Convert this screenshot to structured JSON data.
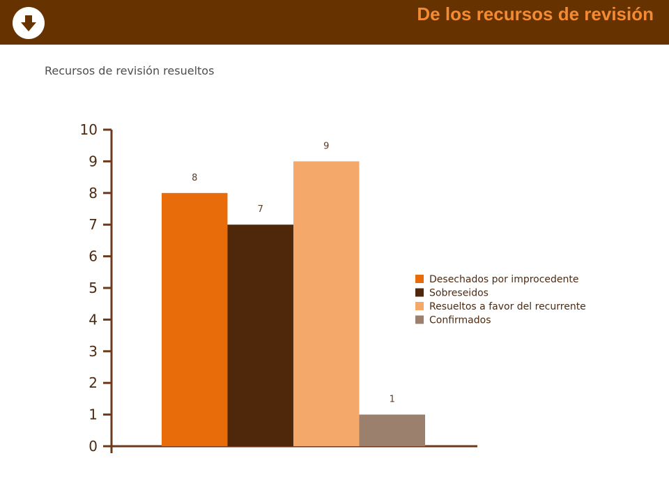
{
  "header": {
    "title": "De los recursos de revisión",
    "download_icon": "arrow-down-circle-icon",
    "bar_color": "#663300",
    "title_color": "#f28b33"
  },
  "chart_data": {
    "type": "bar",
    "title": "Recursos de revisión resueltos",
    "xlabel": "",
    "ylabel": "",
    "ylim": [
      0,
      10
    ],
    "yticks": [
      0,
      1,
      2,
      3,
      4,
      5,
      6,
      7,
      8,
      9,
      10
    ],
    "grid": false,
    "legend_position": "right",
    "series": [
      {
        "name": "Desechados por improcedente",
        "value": 8,
        "label": "8",
        "color": "#e86c0a"
      },
      {
        "name": "Sobreseidos",
        "value": 7,
        "label": "7",
        "color": "#4f280b"
      },
      {
        "name": "Resueltos a favor del recurrente",
        "value": 9,
        "label": "9",
        "color": "#f4a86a"
      },
      {
        "name": "Confirmados",
        "value": 1,
        "label": "1",
        "color": "#9a806d"
      }
    ]
  }
}
